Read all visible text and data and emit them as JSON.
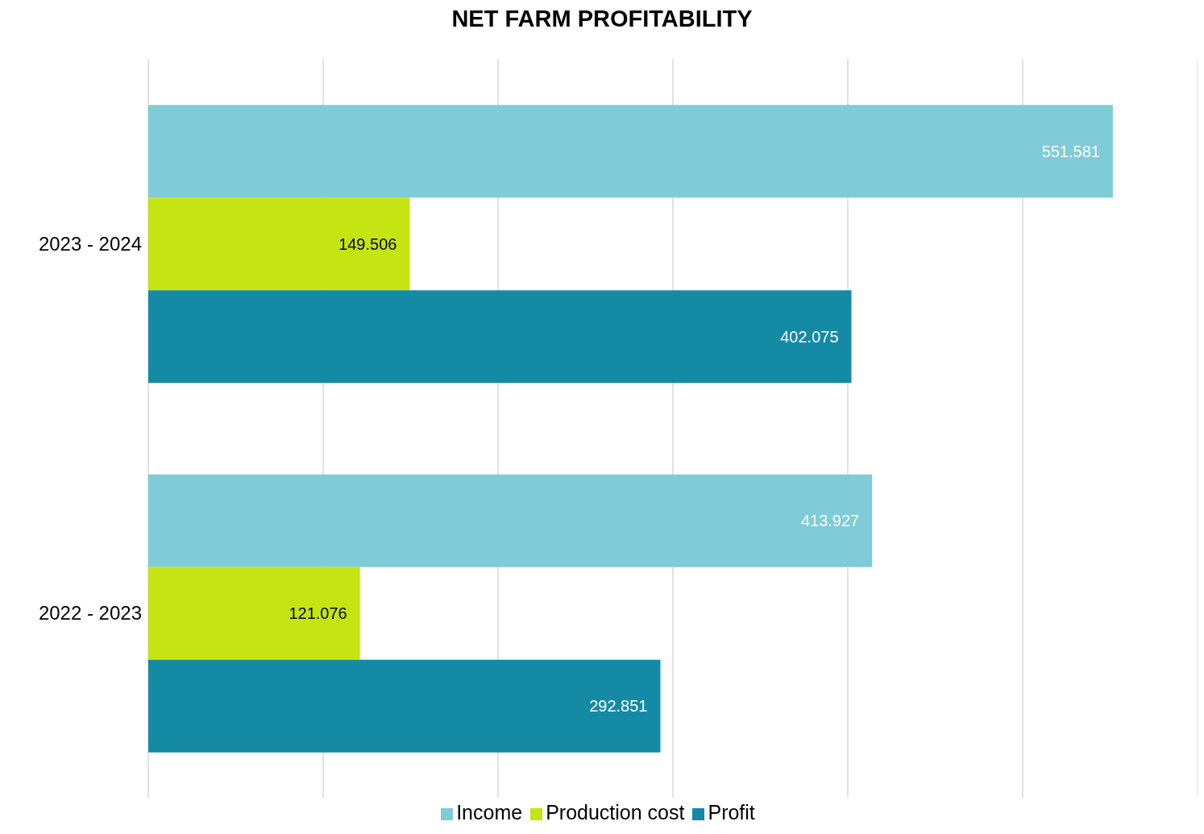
{
  "chart_data": {
    "type": "bar",
    "orientation": "horizontal",
    "title": "NET FARM PROFITABILITY",
    "categories": [
      "2023 - 2024",
      "2022 - 2023"
    ],
    "series": [
      {
        "name": "Income",
        "color": "#7fcbd8",
        "values": [
          551.581,
          413.927
        ]
      },
      {
        "name": "Production cost",
        "color": "#c5e512",
        "values": [
          149.506,
          121.076
        ]
      },
      {
        "name": "Profit",
        "color": "#148aa5",
        "values": [
          402.075,
          292.851
        ]
      }
    ],
    "xlim": [
      0,
      600
    ],
    "xticks": [
      {
        "value": 0,
        "label": null
      },
      {
        "value": 100,
        "label": null
      },
      {
        "value": 200,
        "label": null
      },
      {
        "value": 300,
        "label": null
      },
      {
        "value": 400,
        "label": null
      },
      {
        "value": 500,
        "label": null
      },
      {
        "value": 600,
        "label": null
      }
    ],
    "tick_labels": "y",
    "grid": "x",
    "legend": "bottom",
    "data_labels": true
  }
}
